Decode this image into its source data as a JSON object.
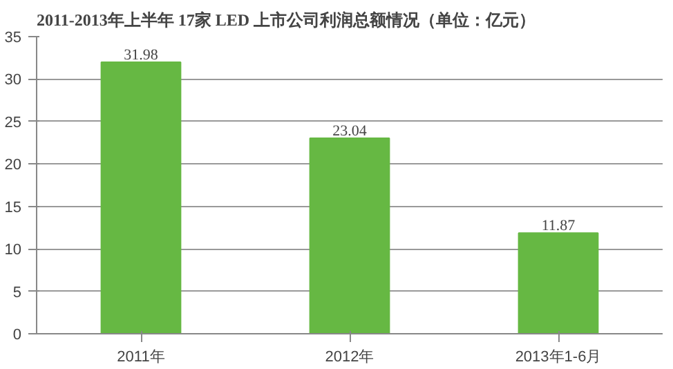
{
  "chart_data": {
    "type": "bar",
    "title": "2011-2013年上半年 17家 LED 上市公司利润总额情况（单位：亿元）",
    "categories": [
      "2011年",
      "2012年",
      "2013年1-6月"
    ],
    "values": [
      31.98,
      23.04,
      11.87
    ],
    "color": "#66b843",
    "data_labels": true,
    "ylim": [
      0,
      35
    ],
    "yticks": [
      0,
      5,
      10,
      15,
      20,
      25,
      30,
      35
    ],
    "grid": "y"
  }
}
